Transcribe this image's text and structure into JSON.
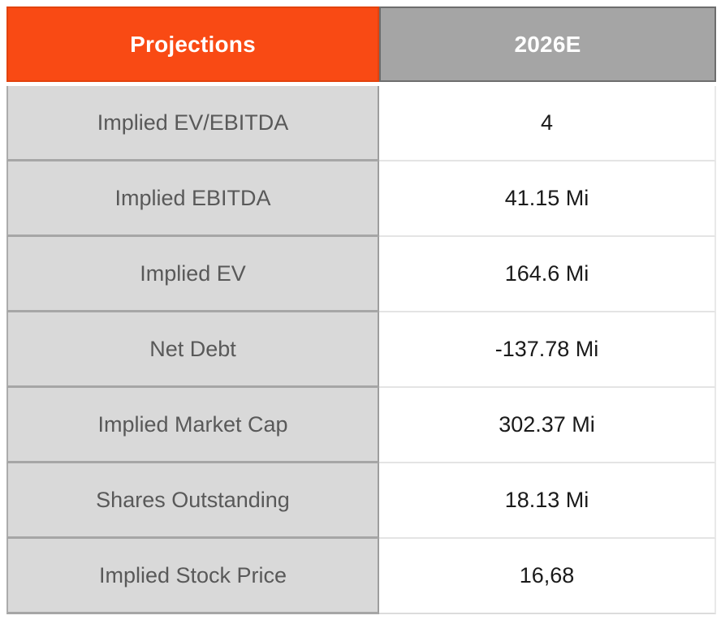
{
  "chart_data": {
    "type": "table",
    "title": "Projections",
    "columns": [
      "Projections",
      "2026E"
    ],
    "rows": [
      {
        "label": "Implied EV/EBITDA",
        "value": "4"
      },
      {
        "label": "Implied EBITDA",
        "value": "41.15 Mi"
      },
      {
        "label": "Implied EV",
        "value": "164.6 Mi"
      },
      {
        "label": "Net Debt",
        "value": "-137.78 Mi"
      },
      {
        "label": "Implied Market Cap",
        "value": "302.37 Mi"
      },
      {
        "label": "Shares Outstanding",
        "value": "18.13 Mi"
      },
      {
        "label": "Implied Stock Price",
        "value": "16,68"
      }
    ],
    "layout": {
      "header_rows": 1,
      "data_rows": 7,
      "columns_count": 2
    }
  },
  "colors": {
    "header_left_bg": "#F94A14",
    "header_left_border": "#E2430E",
    "header_right_bg": "#A5A5A5",
    "header_right_border": "#6D6D6D",
    "header_text": "#FFFFFF",
    "label_cell_bg": "#D9D9D9",
    "label_cell_text": "#595959",
    "label_cell_border": "#A6A6A6",
    "value_cell_bg": "#FFFFFF",
    "value_cell_text": "#1A1A1A",
    "value_cell_border": "#E4E4E4"
  }
}
